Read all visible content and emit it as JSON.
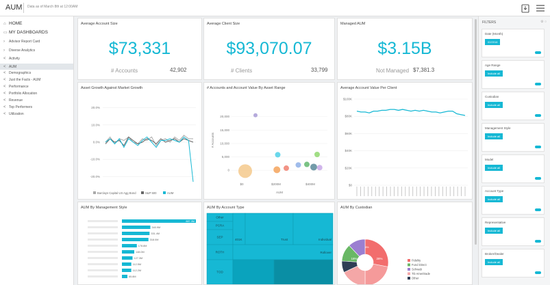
{
  "app": {
    "title": "AUM",
    "as_of": "Data as of March 8th at 12:00AM"
  },
  "topbar": {
    "export_icon": "export-icon",
    "menu_icon": "hamburger-icon"
  },
  "sidebar": {
    "home": "HOME",
    "dashboards": "MY DASHBOARDS",
    "items": [
      "Advisor Report Card",
      "Diverse Analytics",
      "Activity",
      "AUM",
      "Demographics",
      "Just the Facts - AUM",
      "Performance",
      "Portfolio Allocation",
      "Revenue",
      "Top Performers",
      "Utilization"
    ]
  },
  "kpis": [
    {
      "title": "Average Account Size",
      "value": "$73,331",
      "sub_label": "# Accounts",
      "sub_value": "42,902"
    },
    {
      "title": "Average Client Size",
      "value": "$93,070.07",
      "sub_label": "# Clients",
      "sub_value": "33,799"
    },
    {
      "title": "Managed AUM",
      "value": "$3.15B",
      "sub_label": "Not Managed",
      "sub_value": "$7,381.3"
    }
  ],
  "panels": {
    "growth": "Asset Growth Against Market Growth",
    "range": "# Accounts and Account Value By Asset Range",
    "avg": "Average Account Value Per Client",
    "mgmt": "AUM By Management Style",
    "acct": "AUM By Account Type",
    "cust": "AUM By Custodian"
  },
  "filters": {
    "title": "FILTERS",
    "items": [
      {
        "label": "Date (Month)",
        "button": "02/2016"
      },
      {
        "label": "Age Range",
        "button": "Include all"
      },
      {
        "label": "Custodian",
        "button": "Include all"
      },
      {
        "label": "Management Style",
        "button": "Include all"
      },
      {
        "label": "Model",
        "button": "Include all"
      },
      {
        "label": "Account Type",
        "button": "Include all"
      },
      {
        "label": "Representative",
        "button": "Include all"
      },
      {
        "label": "Broker/Dealer",
        "button": "Include all"
      }
    ]
  },
  "colors": {
    "accent": "#16b8d4",
    "bg": "#eef0f2"
  },
  "chart_data": [
    {
      "type": "line",
      "title": "Asset Growth Against Market Growth",
      "y_ticks": [
        "20.0%",
        "10.0%",
        "0.0%",
        "-10.0%",
        "-20.0%"
      ],
      "ylim": [
        -25,
        25
      ],
      "legend": [
        "Barclays Capital US Agg Bond",
        "S&P 500",
        "AUM"
      ],
      "series": [
        {
          "name": "Barclays Capital US Agg Bond",
          "color": "#aaaaaa",
          "values": [
            0,
            3,
            -1,
            2,
            1,
            3,
            0,
            -1,
            2,
            1,
            3,
            -2,
            1,
            2,
            0,
            3,
            1,
            4,
            2,
            2
          ]
        },
        {
          "name": "S&P 500",
          "color": "#666666",
          "values": [
            -1,
            2,
            0,
            1,
            -2,
            3,
            1,
            -1,
            0,
            2,
            1,
            -1,
            2,
            0,
            1,
            2,
            0,
            2,
            1,
            0
          ]
        },
        {
          "name": "AUM",
          "color": "#16b8d4",
          "values": [
            0,
            2,
            -1,
            2,
            -3,
            2,
            0,
            -2,
            1,
            3,
            0,
            -3,
            1,
            1,
            2,
            1,
            0,
            3,
            1,
            -23
          ]
        }
      ]
    },
    {
      "type": "scatter",
      "title": "# Accounts and Account Value By Asset Range",
      "ylabel": "# Accounts",
      "xlabel": "AUM",
      "y_ticks": [
        "20,000",
        "15,000",
        "10,000",
        "5,000",
        "0"
      ],
      "x_ticks": [
        "$0",
        "$200M",
        "$400M"
      ],
      "xlim": [
        -60,
        500
      ],
      "ylim": [
        -2500,
        25000
      ],
      "points": [
        {
          "x": 20,
          "y": -300,
          "r": 10,
          "color": "#f5c98c"
        },
        {
          "x": 80,
          "y": 20500,
          "r": 3,
          "color": "#a89bd6"
        },
        {
          "x": 210,
          "y": 5800,
          "r": 4,
          "color": "#4fd0e8"
        },
        {
          "x": 205,
          "y": 200,
          "r": 5,
          "color": "#f5a35c"
        },
        {
          "x": 260,
          "y": 800,
          "r": 4,
          "color": "#f08070"
        },
        {
          "x": 330,
          "y": 2000,
          "r": 4,
          "color": "#8fb0e8"
        },
        {
          "x": 380,
          "y": 2200,
          "r": 4,
          "color": "#64b870"
        },
        {
          "x": 420,
          "y": 1200,
          "r": 5,
          "color": "#5a8a9a"
        },
        {
          "x": 440,
          "y": 5900,
          "r": 4,
          "color": "#90d870"
        },
        {
          "x": 455,
          "y": 1000,
          "r": 4,
          "color": "#c8a8e8"
        }
      ]
    },
    {
      "type": "line",
      "title": "Average Account Value Per Client",
      "y_ticks": [
        "$100K",
        "$80K",
        "$60K",
        "$40K",
        "$20K",
        "$0"
      ],
      "ylim": [
        0,
        100
      ],
      "series": [
        {
          "name": "AUM",
          "color": "#16b8d4",
          "values": [
            86,
            85,
            85,
            84,
            86,
            86,
            87,
            87,
            88,
            88,
            87,
            88,
            87,
            86,
            87,
            86,
            87,
            86,
            85,
            85,
            84,
            85,
            86,
            86,
            83,
            82,
            81
          ]
        }
      ]
    },
    {
      "type": "bar",
      "title": "AUM By Management Style",
      "labels": [
        "887.3M",
        "340.9M",
        "331.4M",
        "318.0M",
        "178.8M",
        "148.0M",
        "127.3M",
        "112.5M",
        "112.2M",
        "65.8M"
      ],
      "values": [
        887.3,
        340.9,
        331.4,
        318.0,
        178.8,
        148.0,
        127.3,
        112.5,
        112.2,
        65.8
      ]
    },
    {
      "type": "treemap",
      "title": "AUM By Account Type",
      "row_labels": [
        "Other",
        "PCRA",
        "SEP",
        "ROTH",
        "TOD"
      ],
      "tile_labels": [
        "401K",
        "Trust",
        "Individual",
        "Rollover"
      ]
    },
    {
      "type": "pie",
      "title": "AUM By Custodian",
      "slice_labels": [
        "28%",
        "18%",
        "8%"
      ],
      "legend": [
        "Fidelity",
        "Fund Direct",
        "Schwab",
        "TD Ameritrade",
        "Other"
      ],
      "slices": [
        {
          "name": "Fidelity",
          "value": 28,
          "color": "#f26d6d"
        },
        {
          "name": "Other",
          "value": 22,
          "color": "#f59a9a"
        },
        {
          "name": "TD Ameritrade",
          "value": 18,
          "color": "#f4a7a7"
        },
        {
          "name": "Schwab",
          "value": 8,
          "color": "#2f3e55"
        },
        {
          "name": "Fund Direct",
          "value": 12,
          "color": "#69b865"
        },
        {
          "name": "Other2",
          "value": 12,
          "color": "#9b7fd1"
        }
      ]
    }
  ]
}
